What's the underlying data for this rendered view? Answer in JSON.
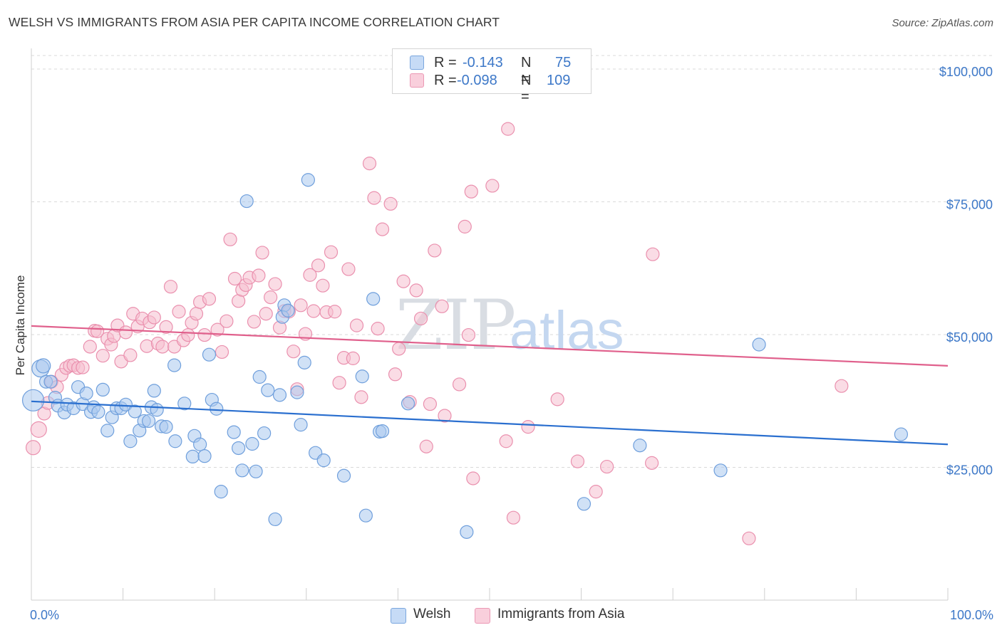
{
  "title": "WELSH VS IMMIGRANTS FROM ASIA PER CAPITA INCOME CORRELATION CHART",
  "source": "Source: ZipAtlas.com",
  "watermark": {
    "zip": "ZIP",
    "atlas": "atlas"
  },
  "legend": {
    "rows": [
      {
        "r_label": "R =",
        "r_value": "-0.143",
        "n_label": "N =",
        "n_value": "75"
      },
      {
        "r_label": "R =",
        "r_value": "-0.098",
        "n_label": "N =",
        "n_value": "109"
      }
    ]
  },
  "bottom_legend": [
    "Welsh",
    "Immigrants from Asia"
  ],
  "colors": {
    "welsh_fill": "#a9c8ee",
    "welsh_stroke": "#6f9fdc",
    "welsh_line": "#2a6fcf",
    "asia_fill": "#f6bfd0",
    "asia_stroke": "#ea90ae",
    "asia_line": "#e0608c",
    "axis_text": "#3d78c8",
    "grid": "#d9d9d9"
  },
  "chart_data": {
    "type": "scatter",
    "title": "WELSH VS IMMIGRANTS FROM ASIA PER CAPITA INCOME CORRELATION CHART",
    "xlabel": "",
    "ylabel": "Per Capita Income",
    "xlim": [
      0,
      100
    ],
    "ylim": [
      0,
      105000
    ],
    "x_tick_labels": [
      "0.0%",
      "100.0%"
    ],
    "y_ticks": [
      {
        "value": 25000,
        "label": "$25,000"
      },
      {
        "value": 50000,
        "label": "$50,000"
      },
      {
        "value": 75000,
        "label": "$75,000"
      },
      {
        "value": 100000,
        "label": "$100,000"
      }
    ],
    "series": [
      {
        "name": "Welsh",
        "R": -0.143,
        "N": 75,
        "trend": {
          "x": [
            0,
            100
          ],
          "y": [
            39300,
            31200
          ]
        },
        "points": [
          [
            0.2,
            39500,
            15
          ],
          [
            1.0,
            45500,
            12
          ],
          [
            1.3,
            46000,
            10
          ],
          [
            1.6,
            43000,
            9
          ],
          [
            2.1,
            43000,
            9
          ],
          [
            2.6,
            40000,
            9
          ],
          [
            2.9,
            38500,
            9
          ],
          [
            3.6,
            37200,
            9
          ],
          [
            3.9,
            38700,
            9
          ],
          [
            4.6,
            38000,
            9
          ],
          [
            5.1,
            42000,
            9
          ],
          [
            5.6,
            38800,
            9
          ],
          [
            6.0,
            40800,
            9
          ],
          [
            6.5,
            37300,
            9
          ],
          [
            6.8,
            38200,
            9
          ],
          [
            7.3,
            37300,
            9
          ],
          [
            7.8,
            41500,
            9
          ],
          [
            8.3,
            33800,
            9
          ],
          [
            8.8,
            36300,
            9
          ],
          [
            9.3,
            38000,
            9
          ],
          [
            9.8,
            38000,
            9
          ],
          [
            10.3,
            38700,
            9
          ],
          [
            10.8,
            31800,
            9
          ],
          [
            11.3,
            37400,
            9
          ],
          [
            11.8,
            33800,
            9
          ],
          [
            12.3,
            35600,
            9
          ],
          [
            12.8,
            35600,
            9
          ],
          [
            13.1,
            38200,
            9
          ],
          [
            13.4,
            41300,
            9
          ],
          [
            13.7,
            37700,
            9
          ],
          [
            14.2,
            34600,
            9
          ],
          [
            14.7,
            34500,
            9
          ],
          [
            15.7,
            31800,
            9
          ],
          [
            15.6,
            46100,
            9
          ],
          [
            16.7,
            38900,
            9
          ],
          [
            17.6,
            28900,
            9
          ],
          [
            17.8,
            32800,
            9
          ],
          [
            18.4,
            31200,
            9
          ],
          [
            18.9,
            29000,
            9
          ],
          [
            19.4,
            48100,
            9
          ],
          [
            19.7,
            39600,
            9
          ],
          [
            20.2,
            37900,
            9
          ],
          [
            20.7,
            22300,
            9
          ],
          [
            22.1,
            33500,
            9
          ],
          [
            22.6,
            30500,
            9
          ],
          [
            23.0,
            26300,
            9
          ],
          [
            23.5,
            77000,
            9
          ],
          [
            24.1,
            31300,
            9
          ],
          [
            24.5,
            26100,
            9
          ],
          [
            24.9,
            43900,
            9
          ],
          [
            25.4,
            33300,
            9
          ],
          [
            25.8,
            41400,
            9
          ],
          [
            26.6,
            17100,
            9
          ],
          [
            27.1,
            40500,
            9
          ],
          [
            27.6,
            57400,
            9
          ],
          [
            27.4,
            55200,
            9
          ],
          [
            28.0,
            56400,
            9
          ],
          [
            29.0,
            41000,
            9
          ],
          [
            29.4,
            34900,
            9
          ],
          [
            29.8,
            46600,
            9
          ],
          [
            30.2,
            81000,
            9
          ],
          [
            31.0,
            29600,
            9
          ],
          [
            31.9,
            28200,
            9
          ],
          [
            34.1,
            25300,
            9
          ],
          [
            36.1,
            44000,
            9
          ],
          [
            36.5,
            17800,
            9
          ],
          [
            37.3,
            58600,
            9
          ],
          [
            38.0,
            33600,
            9
          ],
          [
            38.3,
            33700,
            9
          ],
          [
            41.1,
            38900,
            9
          ],
          [
            47.5,
            14700,
            9
          ],
          [
            60.3,
            20000,
            9
          ],
          [
            66.4,
            31000,
            9
          ],
          [
            75.2,
            26300,
            9
          ],
          [
            79.4,
            50000,
            9
          ],
          [
            94.9,
            33100,
            9
          ]
        ]
      },
      {
        "name": "Immigrants from Asia",
        "R": -0.098,
        "N": 109,
        "trend": {
          "x": [
            0,
            100
          ],
          "y": [
            53500,
            46000
          ]
        },
        "points": [
          [
            0.2,
            30600,
            10
          ],
          [
            0.8,
            34000,
            11
          ],
          [
            1.4,
            37000,
            9
          ],
          [
            1.8,
            39000,
            9
          ],
          [
            2.2,
            43000,
            9
          ],
          [
            2.8,
            42000,
            9
          ],
          [
            3.3,
            44300,
            9
          ],
          [
            3.8,
            45600,
            9
          ],
          [
            4.2,
            46000,
            9
          ],
          [
            4.6,
            46100,
            9
          ],
          [
            5.1,
            45600,
            9
          ],
          [
            5.6,
            45700,
            9
          ],
          [
            6.4,
            49600,
            9
          ],
          [
            6.9,
            52600,
            9
          ],
          [
            7.2,
            52500,
            9
          ],
          [
            7.8,
            47900,
            9
          ],
          [
            8.3,
            51100,
            9
          ],
          [
            8.7,
            50000,
            9
          ],
          [
            9.0,
            51600,
            9
          ],
          [
            9.4,
            53600,
            9
          ],
          [
            9.8,
            46800,
            9
          ],
          [
            10.3,
            52300,
            9
          ],
          [
            10.8,
            48000,
            9
          ],
          [
            11.1,
            55800,
            9
          ],
          [
            11.6,
            53400,
            9
          ],
          [
            12.1,
            54900,
            9
          ],
          [
            12.6,
            49700,
            9
          ],
          [
            12.9,
            54200,
            9
          ],
          [
            13.4,
            55100,
            9
          ],
          [
            13.8,
            50200,
            9
          ],
          [
            14.3,
            49600,
            9
          ],
          [
            14.7,
            53300,
            9
          ],
          [
            15.2,
            60900,
            9
          ],
          [
            15.6,
            49600,
            9
          ],
          [
            16.1,
            56200,
            9
          ],
          [
            16.6,
            50800,
            9
          ],
          [
            17.1,
            51800,
            9
          ],
          [
            17.5,
            54100,
            9
          ],
          [
            18.0,
            55800,
            9
          ],
          [
            18.4,
            58000,
            9
          ],
          [
            18.9,
            51800,
            9
          ],
          [
            19.4,
            58600,
            9
          ],
          [
            20.3,
            52800,
            9
          ],
          [
            20.8,
            48600,
            9
          ],
          [
            21.3,
            54400,
            9
          ],
          [
            21.7,
            69800,
            9
          ],
          [
            22.2,
            62400,
            9
          ],
          [
            22.6,
            58200,
            9
          ],
          [
            23.0,
            60300,
            9
          ],
          [
            23.4,
            61200,
            9
          ],
          [
            23.8,
            62600,
            9
          ],
          [
            24.3,
            54300,
            9
          ],
          [
            24.8,
            63000,
            9
          ],
          [
            25.2,
            67300,
            9
          ],
          [
            25.6,
            55800,
            9
          ],
          [
            26.1,
            58900,
            9
          ],
          [
            26.6,
            61400,
            9
          ],
          [
            27.1,
            53200,
            9
          ],
          [
            27.6,
            56300,
            9
          ],
          [
            28.1,
            56200,
            9
          ],
          [
            28.6,
            48700,
            9
          ],
          [
            29.0,
            41600,
            9
          ],
          [
            29.4,
            57400,
            9
          ],
          [
            29.9,
            52000,
            9
          ],
          [
            30.4,
            63100,
            9
          ],
          [
            30.8,
            56300,
            9
          ],
          [
            31.3,
            64900,
            9
          ],
          [
            31.8,
            61100,
            9
          ],
          [
            32.2,
            56100,
            9
          ],
          [
            32.7,
            67400,
            9
          ],
          [
            33.1,
            56200,
            9
          ],
          [
            33.6,
            42800,
            9
          ],
          [
            34.1,
            47500,
            9
          ],
          [
            34.6,
            64200,
            9
          ],
          [
            35.1,
            47400,
            9
          ],
          [
            35.5,
            53600,
            9
          ],
          [
            36.0,
            40100,
            9
          ],
          [
            36.9,
            84100,
            9
          ],
          [
            37.4,
            77600,
            9
          ],
          [
            37.8,
            53000,
            9
          ],
          [
            38.3,
            71700,
            9
          ],
          [
            39.2,
            76500,
            9
          ],
          [
            39.7,
            44400,
            9
          ],
          [
            40.1,
            49200,
            9
          ],
          [
            40.6,
            61900,
            9
          ],
          [
            41.3,
            39200,
            9
          ],
          [
            42.0,
            60200,
            9
          ],
          [
            42.5,
            54900,
            9
          ],
          [
            43.1,
            30800,
            9
          ],
          [
            43.5,
            38800,
            9
          ],
          [
            44.0,
            67700,
            9
          ],
          [
            44.8,
            57200,
            9
          ],
          [
            45.1,
            36600,
            9
          ],
          [
            46.7,
            42500,
            9
          ],
          [
            47.3,
            72200,
            9
          ],
          [
            47.7,
            51800,
            9
          ],
          [
            48.0,
            78800,
            9
          ],
          [
            48.2,
            24800,
            9
          ],
          [
            50.3,
            79900,
            9
          ],
          [
            51.8,
            31800,
            9
          ],
          [
            52.0,
            90600,
            9
          ],
          [
            52.6,
            17400,
            9
          ],
          [
            54.2,
            34500,
            9
          ],
          [
            57.4,
            39700,
            9
          ],
          [
            59.6,
            28000,
            9
          ],
          [
            61.6,
            22300,
            9
          ],
          [
            62.8,
            27000,
            9
          ],
          [
            67.7,
            27700,
            9
          ],
          [
            67.8,
            67000,
            9
          ],
          [
            78.3,
            13500,
            9
          ],
          [
            88.4,
            42200,
            9
          ]
        ]
      }
    ]
  }
}
